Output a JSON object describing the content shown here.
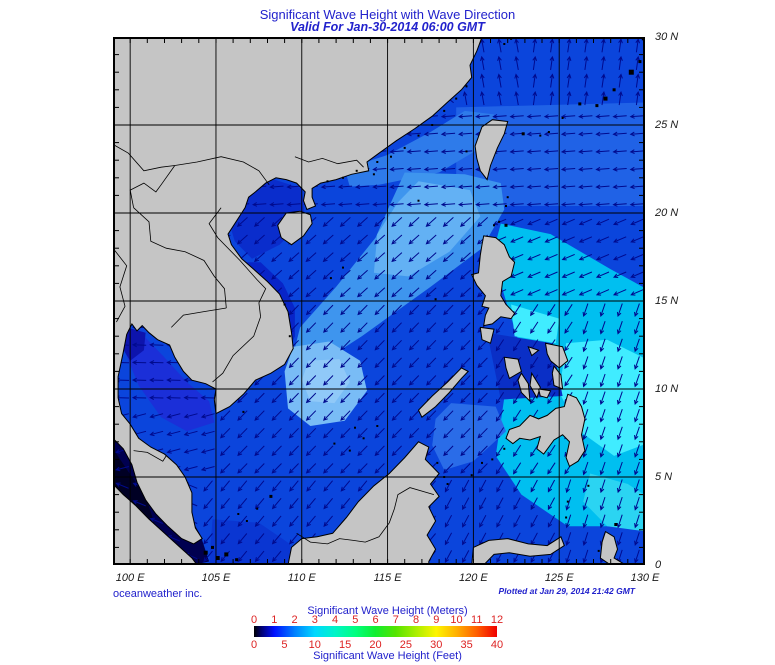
{
  "title": "Significant Wave Height with Wave Direction",
  "subtitle": "Valid For Jan-30-2014 06:00 GMT",
  "credit": "oceanweather inc.",
  "plotted_note": "Plotted at Jan 29, 2014 21:42 GMT",
  "axes": {
    "lon_labels": [
      "100 E",
      "105 E",
      "110 E",
      "115 E",
      "120 E",
      "125 E",
      "130 E"
    ],
    "lon_values": [
      100,
      105,
      110,
      115,
      120,
      125,
      130
    ],
    "lat_labels": [
      "30 N",
      "25 N",
      "20 N",
      "15 N",
      "10 N",
      "5 N",
      "0"
    ],
    "lat_values": [
      30,
      25,
      20,
      15,
      10,
      5,
      0
    ]
  },
  "map": {
    "lon_min": 99,
    "lon_max": 130,
    "lat_min": 0,
    "lat_max": 30
  },
  "legend": {
    "meters_label": "Significant Wave Height (Meters)",
    "feet_label": "Significant Wave Height (Feet)",
    "meters_ticks": [
      "0",
      "1",
      "2",
      "3",
      "4",
      "5",
      "6",
      "7",
      "8",
      "9",
      "10",
      "11",
      "12"
    ],
    "feet_ticks": [
      "0",
      "5",
      "10",
      "15",
      "20",
      "25",
      "30",
      "35",
      "40"
    ],
    "colorbar_stops": [
      [
        0,
        "#000000"
      ],
      [
        0.03,
        "#000070"
      ],
      [
        0.083,
        "#0010ff"
      ],
      [
        0.167,
        "#0080ff"
      ],
      [
        0.25,
        "#00d8ff"
      ],
      [
        0.333,
        "#00f4c8"
      ],
      [
        0.417,
        "#00ff80"
      ],
      [
        0.5,
        "#10ee30"
      ],
      [
        0.583,
        "#55e400"
      ],
      [
        0.667,
        "#aaee00"
      ],
      [
        0.75,
        "#fdf500"
      ],
      [
        0.833,
        "#ffb000"
      ],
      [
        0.917,
        "#ff5f00"
      ],
      [
        1,
        "#f00000"
      ]
    ]
  },
  "colors": {
    "title_text": "#2222cc",
    "legend_label_text": "#2222cc",
    "legend_tick_text": "#dd2222",
    "axis_text": "#1a1a1a",
    "land": "#c5c5c5",
    "coast": "#000000",
    "grid": "#000000",
    "arrow": "#000a8e",
    "ocean_base": "#0b45dc",
    "ocean_dark": "#000050",
    "ocean_light": "#3e95ee",
    "ocean_cyan": "#00bff0"
  }
}
